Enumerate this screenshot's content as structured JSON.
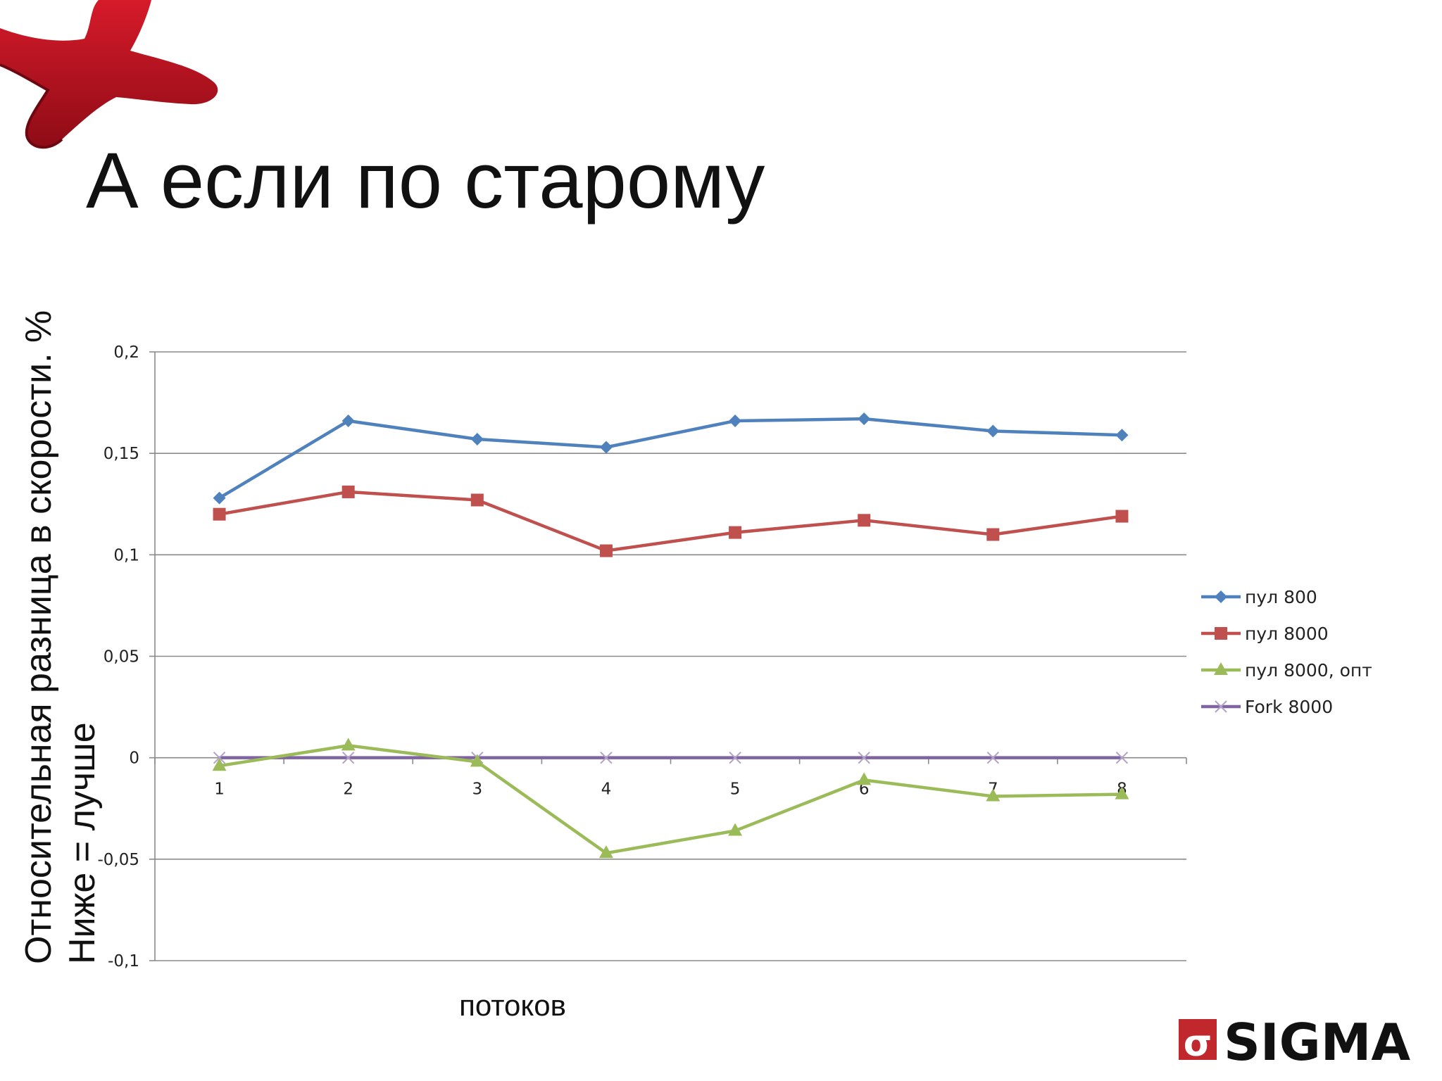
{
  "slide": {
    "title": "А если по старому"
  },
  "logo": {
    "text": "SIGMA",
    "mark": "σ",
    "accent": "#c0282d"
  },
  "chart_data": {
    "type": "line",
    "x": [
      "1",
      "2",
      "3",
      "4",
      "5",
      "6",
      "7",
      "8"
    ],
    "ylabel": "Относительная разница в скорости. %",
    "ylabel2": "Ниже = лучше",
    "xlabel": "потоков",
    "ylim": [
      -0.1,
      0.2
    ],
    "yticks": [
      -0.1,
      -0.05,
      0,
      0.05,
      0.1,
      0.15,
      0.2
    ],
    "ytick_labels": [
      "-0,1",
      "-0,05",
      "0",
      "0,05",
      "0,1",
      "0,15",
      "0,2"
    ],
    "grid": "horizontal",
    "legend_position": "right",
    "series": [
      {
        "name": "пул 800",
        "color": "#4f81bd",
        "marker": "diamond",
        "values": [
          0.128,
          0.166,
          0.157,
          0.153,
          0.166,
          0.167,
          0.161,
          0.159
        ]
      },
      {
        "name": "пул 8000",
        "color": "#c0504d",
        "marker": "square",
        "values": [
          0.12,
          0.131,
          0.127,
          0.102,
          0.111,
          0.117,
          0.11,
          0.119
        ]
      },
      {
        "name": "пул 8000, опт",
        "color": "#9bbb59",
        "marker": "triangle",
        "values": [
          -0.004,
          0.006,
          -0.002,
          -0.047,
          -0.036,
          -0.011,
          -0.019,
          -0.018
        ]
      },
      {
        "name": "Fork 8000",
        "color": "#8064a2",
        "marker": "x",
        "values": [
          0,
          0,
          0,
          0,
          0,
          0,
          0,
          0
        ]
      }
    ]
  }
}
